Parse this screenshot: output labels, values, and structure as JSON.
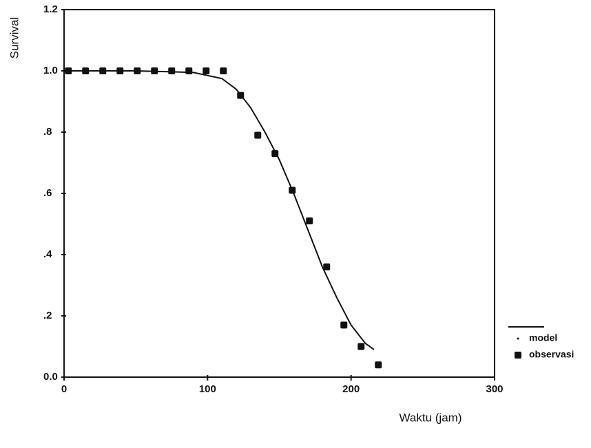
{
  "chart_data": {
    "type": "line",
    "x_label": "Waktu (jam)",
    "y_label": "Survival",
    "xlim": [
      0,
      300
    ],
    "xticks": [
      0,
      100,
      200,
      300
    ],
    "ylim": [
      0,
      1.2
    ],
    "yticks": [
      {
        "value": 0,
        "label": "0.0"
      },
      {
        "value": 0.2,
        "label": ".2"
      },
      {
        "value": 0.4,
        "label": ".4"
      },
      {
        "value": 0.6,
        "label": ".6"
      },
      {
        "value": 0.8,
        "label": ".8"
      },
      {
        "value": 1.0,
        "label": "1.0"
      },
      {
        "value": 1.2,
        "label": "1.2"
      }
    ],
    "series": [
      {
        "name": "model",
        "mode": "line",
        "color": "#111111",
        "x": [
          0,
          50,
          90,
          110,
          120,
          130,
          140,
          150,
          160,
          170,
          180,
          190,
          200,
          210,
          216
        ],
        "values": [
          1.0,
          1.0,
          0.995,
          0.975,
          0.94,
          0.88,
          0.8,
          0.71,
          0.6,
          0.48,
          0.36,
          0.26,
          0.17,
          0.11,
          0.09
        ]
      },
      {
        "name": "observasi",
        "mode": "markers",
        "color": "#111111",
        "x": [
          3,
          15,
          27,
          39,
          51,
          63,
          75,
          87,
          99,
          111,
          123,
          135,
          147,
          159,
          171,
          183,
          195,
          207,
          219
        ],
        "values": [
          1.0,
          1.0,
          1.0,
          1.0,
          1.0,
          1.0,
          1.0,
          1.0,
          1.0,
          1.0,
          0.92,
          0.79,
          0.73,
          0.61,
          0.51,
          0.36,
          0.17,
          0.1,
          0.04
        ]
      }
    ]
  }
}
